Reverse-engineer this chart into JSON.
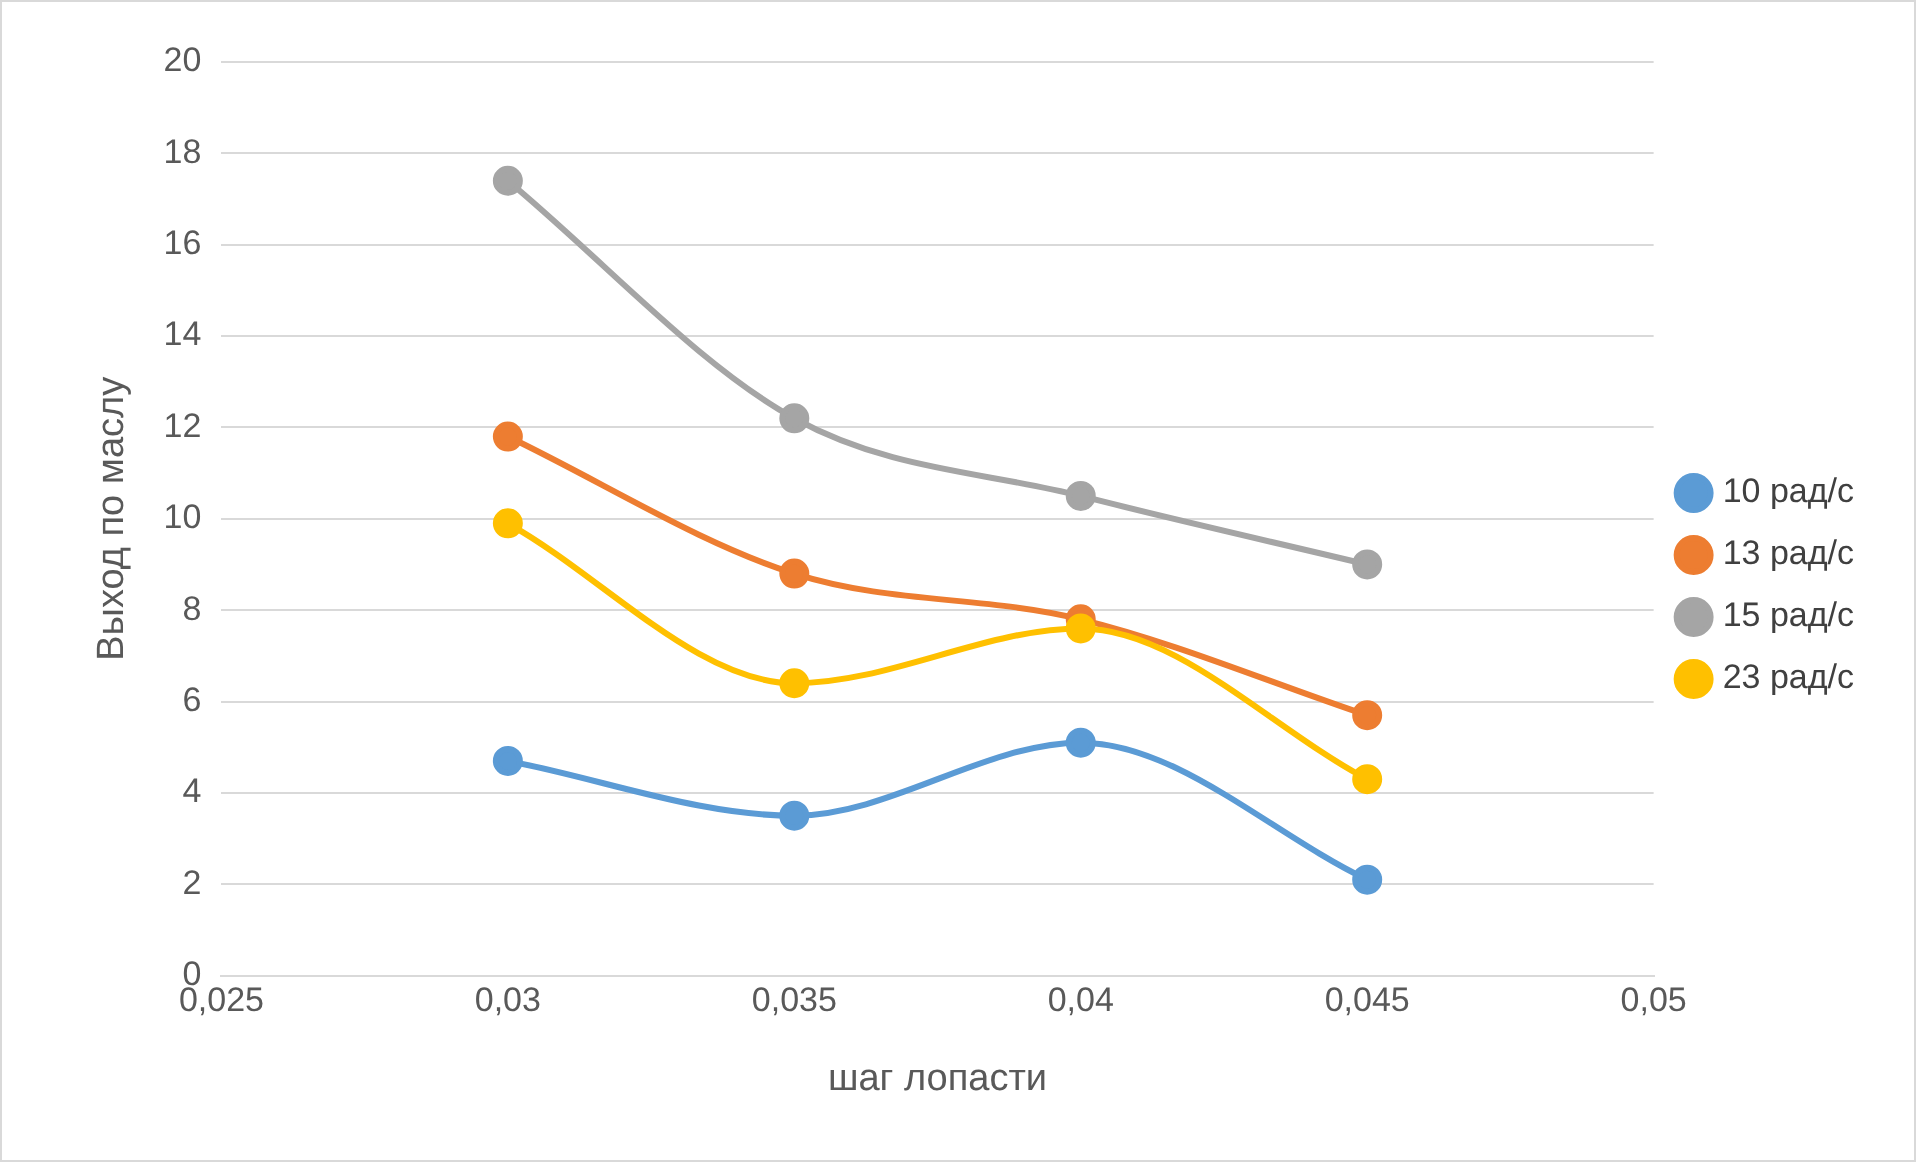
{
  "chart_data": {
    "type": "line",
    "xlabel": "шаг лопасти",
    "ylabel": "Выход по маслу",
    "x": [
      0.03,
      0.035,
      0.04,
      0.045
    ],
    "series": [
      {
        "name": "10 рад/с",
        "color": "#5b9bd5",
        "values": [
          4.7,
          3.5,
          5.1,
          2.1
        ]
      },
      {
        "name": "13 рад/с",
        "color": "#ed7d31",
        "values": [
          11.8,
          8.8,
          7.8,
          5.7
        ]
      },
      {
        "name": "15 рад/с",
        "color": "#a5a5a5",
        "values": [
          17.4,
          12.2,
          10.5,
          9.0
        ]
      },
      {
        "name": "23 рад/с",
        "color": "#ffc000",
        "values": [
          9.9,
          6.4,
          7.6,
          4.3
        ]
      }
    ],
    "xlim": [
      0.025,
      0.05
    ],
    "xticks": [
      {
        "value": 0.025,
        "label": "0,025"
      },
      {
        "value": 0.03,
        "label": "0,03"
      },
      {
        "value": 0.035,
        "label": "0,035"
      },
      {
        "value": 0.04,
        "label": "0,04"
      },
      {
        "value": 0.045,
        "label": "0,045"
      },
      {
        "value": 0.05,
        "label": "0,05"
      }
    ],
    "ylim": [
      0,
      20
    ],
    "yticks": [
      0,
      2,
      4,
      6,
      8,
      10,
      12,
      14,
      16,
      18,
      20
    ],
    "grid": "y",
    "legend": "right",
    "marker": "circle",
    "line_style": "solid"
  }
}
